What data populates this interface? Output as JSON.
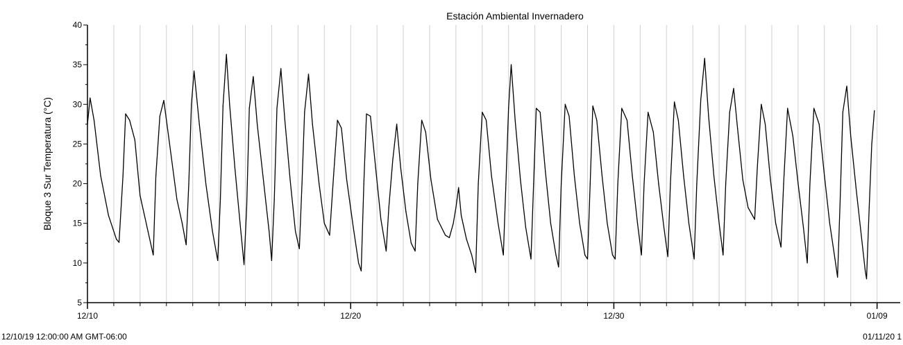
{
  "chart_data": {
    "type": "line",
    "title": "Estación Ambiental Invernadero",
    "xlabel": "",
    "ylabel": "Bloque 3 Sur Temperatura (°C)",
    "ylim": [
      5,
      40
    ],
    "y_ticks": [
      5,
      10,
      15,
      20,
      25,
      30,
      35,
      40
    ],
    "x_range": [
      "2019-12-10",
      "2020-01-10"
    ],
    "x_major_ticks": [
      {
        "date": "2019-12-10",
        "label": "12/10"
      },
      {
        "date": "2019-12-20",
        "label": "12/20"
      },
      {
        "date": "2019-12-30",
        "label": "12/30"
      },
      {
        "date": "2020-01-09",
        "label": "01/09"
      }
    ],
    "grid": "vertical daily lines",
    "footer_left": "12/10/19 12:00:00 AM GMT-06:00",
    "footer_right": "01/11/20 1",
    "line_color": "#000000",
    "grid_color": "#d0d0d0",
    "series": [
      {
        "values": [
          [
            0.0,
            27.5
          ],
          [
            0.1,
            30.8
          ],
          [
            0.25,
            28.0
          ],
          [
            0.5,
            21.0
          ],
          [
            0.8,
            16.0
          ],
          [
            1.1,
            13.0
          ],
          [
            1.2,
            12.6
          ],
          [
            1.35,
            21.0
          ],
          [
            1.45,
            28.8
          ],
          [
            1.6,
            28.0
          ],
          [
            1.8,
            25.5
          ],
          [
            2.0,
            18.5
          ],
          [
            2.3,
            14.0
          ],
          [
            2.5,
            11.0
          ],
          [
            2.6,
            21.0
          ],
          [
            2.75,
            28.5
          ],
          [
            2.9,
            30.5
          ],
          [
            3.1,
            25.5
          ],
          [
            3.4,
            18.0
          ],
          [
            3.6,
            15.0
          ],
          [
            3.75,
            12.3
          ],
          [
            3.85,
            20.0
          ],
          [
            3.95,
            30.0
          ],
          [
            4.05,
            34.2
          ],
          [
            4.25,
            27.5
          ],
          [
            4.5,
            20.0
          ],
          [
            4.75,
            14.0
          ],
          [
            4.95,
            10.3
          ],
          [
            5.05,
            18.0
          ],
          [
            5.15,
            29.8
          ],
          [
            5.28,
            36.3
          ],
          [
            5.4,
            30.0
          ],
          [
            5.6,
            22.0
          ],
          [
            5.8,
            15.0
          ],
          [
            5.95,
            9.8
          ],
          [
            6.05,
            17.0
          ],
          [
            6.15,
            29.5
          ],
          [
            6.3,
            33.5
          ],
          [
            6.45,
            27.5
          ],
          [
            6.7,
            20.0
          ],
          [
            6.9,
            14.0
          ],
          [
            7.0,
            10.3
          ],
          [
            7.1,
            18.0
          ],
          [
            7.2,
            29.5
          ],
          [
            7.35,
            34.5
          ],
          [
            7.5,
            28.0
          ],
          [
            7.7,
            20.5
          ],
          [
            7.9,
            14.0
          ],
          [
            8.05,
            11.8
          ],
          [
            8.15,
            20.0
          ],
          [
            8.25,
            29.0
          ],
          [
            8.4,
            33.8
          ],
          [
            8.55,
            27.5
          ],
          [
            8.8,
            20.0
          ],
          [
            9.0,
            15.0
          ],
          [
            9.2,
            13.5
          ],
          [
            9.35,
            21.0
          ],
          [
            9.5,
            28.0
          ],
          [
            9.65,
            27.0
          ],
          [
            9.85,
            20.5
          ],
          [
            10.1,
            14.5
          ],
          [
            10.3,
            10.0
          ],
          [
            10.4,
            9.0
          ],
          [
            10.5,
            20.0
          ],
          [
            10.6,
            28.8
          ],
          [
            10.75,
            28.5
          ],
          [
            10.95,
            22.0
          ],
          [
            11.15,
            15.5
          ],
          [
            11.35,
            11.5
          ],
          [
            11.45,
            17.0
          ],
          [
            11.6,
            23.0
          ],
          [
            11.75,
            27.5
          ],
          [
            11.9,
            22.0
          ],
          [
            12.1,
            16.5
          ],
          [
            12.3,
            12.5
          ],
          [
            12.45,
            11.5
          ],
          [
            12.55,
            20.0
          ],
          [
            12.7,
            28.0
          ],
          [
            12.85,
            26.5
          ],
          [
            13.05,
            20.5
          ],
          [
            13.3,
            15.5
          ],
          [
            13.6,
            13.5
          ],
          [
            13.75,
            13.2
          ],
          [
            13.9,
            15.0
          ],
          [
            14.0,
            17.0
          ],
          [
            14.1,
            19.5
          ],
          [
            14.2,
            16.0
          ],
          [
            14.4,
            13.0
          ],
          [
            14.6,
            11.0
          ],
          [
            14.75,
            8.8
          ],
          [
            14.85,
            20.0
          ],
          [
            15.0,
            29.0
          ],
          [
            15.15,
            28.0
          ],
          [
            15.35,
            21.0
          ],
          [
            15.6,
            15.0
          ],
          [
            15.8,
            11.0
          ],
          [
            15.9,
            20.0
          ],
          [
            16.0,
            29.5
          ],
          [
            16.1,
            35.0
          ],
          [
            16.25,
            28.0
          ],
          [
            16.45,
            20.5
          ],
          [
            16.65,
            14.5
          ],
          [
            16.85,
            10.5
          ],
          [
            16.95,
            20.0
          ],
          [
            17.05,
            29.5
          ],
          [
            17.2,
            29.0
          ],
          [
            17.4,
            21.5
          ],
          [
            17.6,
            15.0
          ],
          [
            17.8,
            11.0
          ],
          [
            17.9,
            9.5
          ],
          [
            18.0,
            20.0
          ],
          [
            18.15,
            30.0
          ],
          [
            18.3,
            28.5
          ],
          [
            18.5,
            21.0
          ],
          [
            18.7,
            15.0
          ],
          [
            18.9,
            11.0
          ],
          [
            19.0,
            10.5
          ],
          [
            19.1,
            20.0
          ],
          [
            19.2,
            29.8
          ],
          [
            19.35,
            28.0
          ],
          [
            19.55,
            21.0
          ],
          [
            19.75,
            15.0
          ],
          [
            19.95,
            11.0
          ],
          [
            20.05,
            10.5
          ],
          [
            20.15,
            20.0
          ],
          [
            20.3,
            29.5
          ],
          [
            20.5,
            28.0
          ],
          [
            20.7,
            21.0
          ],
          [
            20.9,
            15.0
          ],
          [
            21.05,
            11.0
          ],
          [
            21.15,
            20.0
          ],
          [
            21.3,
            29.0
          ],
          [
            21.5,
            26.5
          ],
          [
            21.7,
            20.0
          ],
          [
            21.9,
            14.5
          ],
          [
            22.05,
            10.8
          ],
          [
            22.15,
            20.0
          ],
          [
            22.3,
            30.3
          ],
          [
            22.45,
            28.0
          ],
          [
            22.65,
            21.0
          ],
          [
            22.85,
            15.0
          ],
          [
            23.05,
            10.5
          ],
          [
            23.15,
            20.0
          ],
          [
            23.3,
            30.5
          ],
          [
            23.45,
            35.8
          ],
          [
            23.6,
            28.5
          ],
          [
            23.8,
            21.0
          ],
          [
            24.0,
            15.0
          ],
          [
            24.15,
            11.0
          ],
          [
            24.25,
            20.0
          ],
          [
            24.4,
            29.0
          ],
          [
            24.55,
            32.0
          ],
          [
            24.7,
            27.0
          ],
          [
            24.9,
            20.5
          ],
          [
            25.1,
            17.0
          ],
          [
            25.35,
            15.5
          ],
          [
            25.45,
            22.0
          ],
          [
            25.6,
            30.0
          ],
          [
            25.75,
            27.5
          ],
          [
            25.95,
            20.5
          ],
          [
            26.15,
            15.0
          ],
          [
            26.35,
            12.0
          ],
          [
            26.45,
            20.0
          ],
          [
            26.6,
            29.5
          ],
          [
            26.8,
            26.0
          ],
          [
            27.0,
            20.0
          ],
          [
            27.2,
            14.5
          ],
          [
            27.35,
            10.0
          ],
          [
            27.45,
            20.0
          ],
          [
            27.6,
            29.5
          ],
          [
            27.8,
            27.5
          ],
          [
            28.0,
            21.0
          ],
          [
            28.2,
            15.0
          ],
          [
            28.4,
            10.5
          ],
          [
            28.5,
            8.2
          ],
          [
            28.6,
            18.0
          ],
          [
            28.7,
            29.0
          ],
          [
            28.85,
            32.3
          ],
          [
            29.0,
            26.0
          ],
          [
            29.2,
            19.5
          ],
          [
            29.4,
            13.5
          ],
          [
            29.55,
            9.0
          ],
          [
            29.6,
            8.0
          ],
          [
            29.7,
            17.0
          ],
          [
            29.8,
            25.0
          ],
          [
            29.9,
            29.2
          ]
        ]
      }
    ]
  }
}
